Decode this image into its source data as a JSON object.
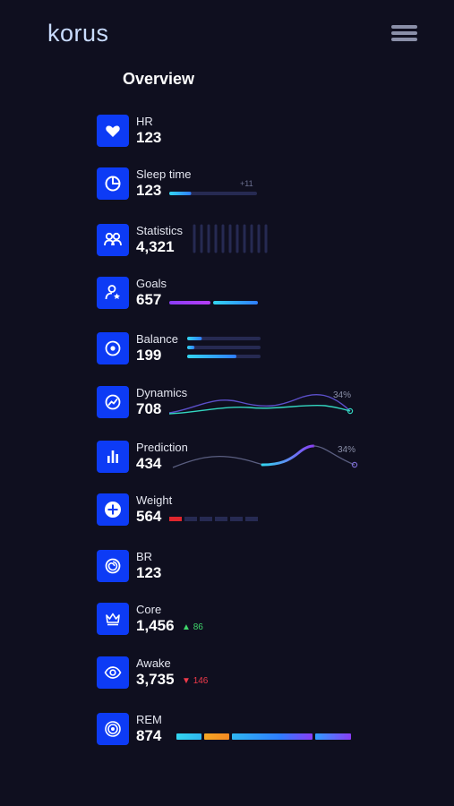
{
  "header": {
    "logo": "korus",
    "menu_icon": "hamburger-menu-icon"
  },
  "page_title": "Overview",
  "colors": {
    "background": "#0f0f1f",
    "icon_tile": "#0d3bf5",
    "accent_cyan": "#33d6f0",
    "accent_blue": "#2f7dff",
    "accent_purple": "#8a3df5",
    "track": "#262a52",
    "positive": "#3fd66a",
    "negative": "#f03a4a",
    "orange": "#f5a623",
    "red": "#e0262d"
  },
  "metrics": [
    {
      "label": "HR",
      "value": "123",
      "icon": "heart-icon"
    },
    {
      "label": "Sleep time",
      "value": "123",
      "icon": "pie-chart-icon",
      "delta": "+11",
      "progress": 0.25
    },
    {
      "label": "Statistics",
      "value": "4,321",
      "icon": "users-icon"
    },
    {
      "label": "Goals",
      "value": "657",
      "icon": "user-star-icon"
    },
    {
      "label": "Balance",
      "value": "199",
      "icon": "target-circle-icon",
      "bars": [
        0.2,
        0.1,
        0.67
      ]
    },
    {
      "label": "Dynamics",
      "value": "708",
      "icon": "trend-circle-icon",
      "percent": "34%"
    },
    {
      "label": "Prediction",
      "value": "434",
      "icon": "bar-chart-icon",
      "percent": "34%"
    },
    {
      "label": "Weight",
      "value": "564",
      "icon": "plus-circle-icon",
      "segments_filled": 1,
      "segments_total": 6
    },
    {
      "label": "BR",
      "value": "123",
      "icon": "spiral-icon"
    },
    {
      "label": "Core",
      "value": "1,456",
      "icon": "crown-icon",
      "trend": "86",
      "trend_dir": "up"
    },
    {
      "label": "Awake",
      "value": "3,735",
      "icon": "eye-icon",
      "trend": "146",
      "trend_dir": "down"
    },
    {
      "label": "REM",
      "value": "874",
      "icon": "concentric-circles-icon"
    }
  ]
}
